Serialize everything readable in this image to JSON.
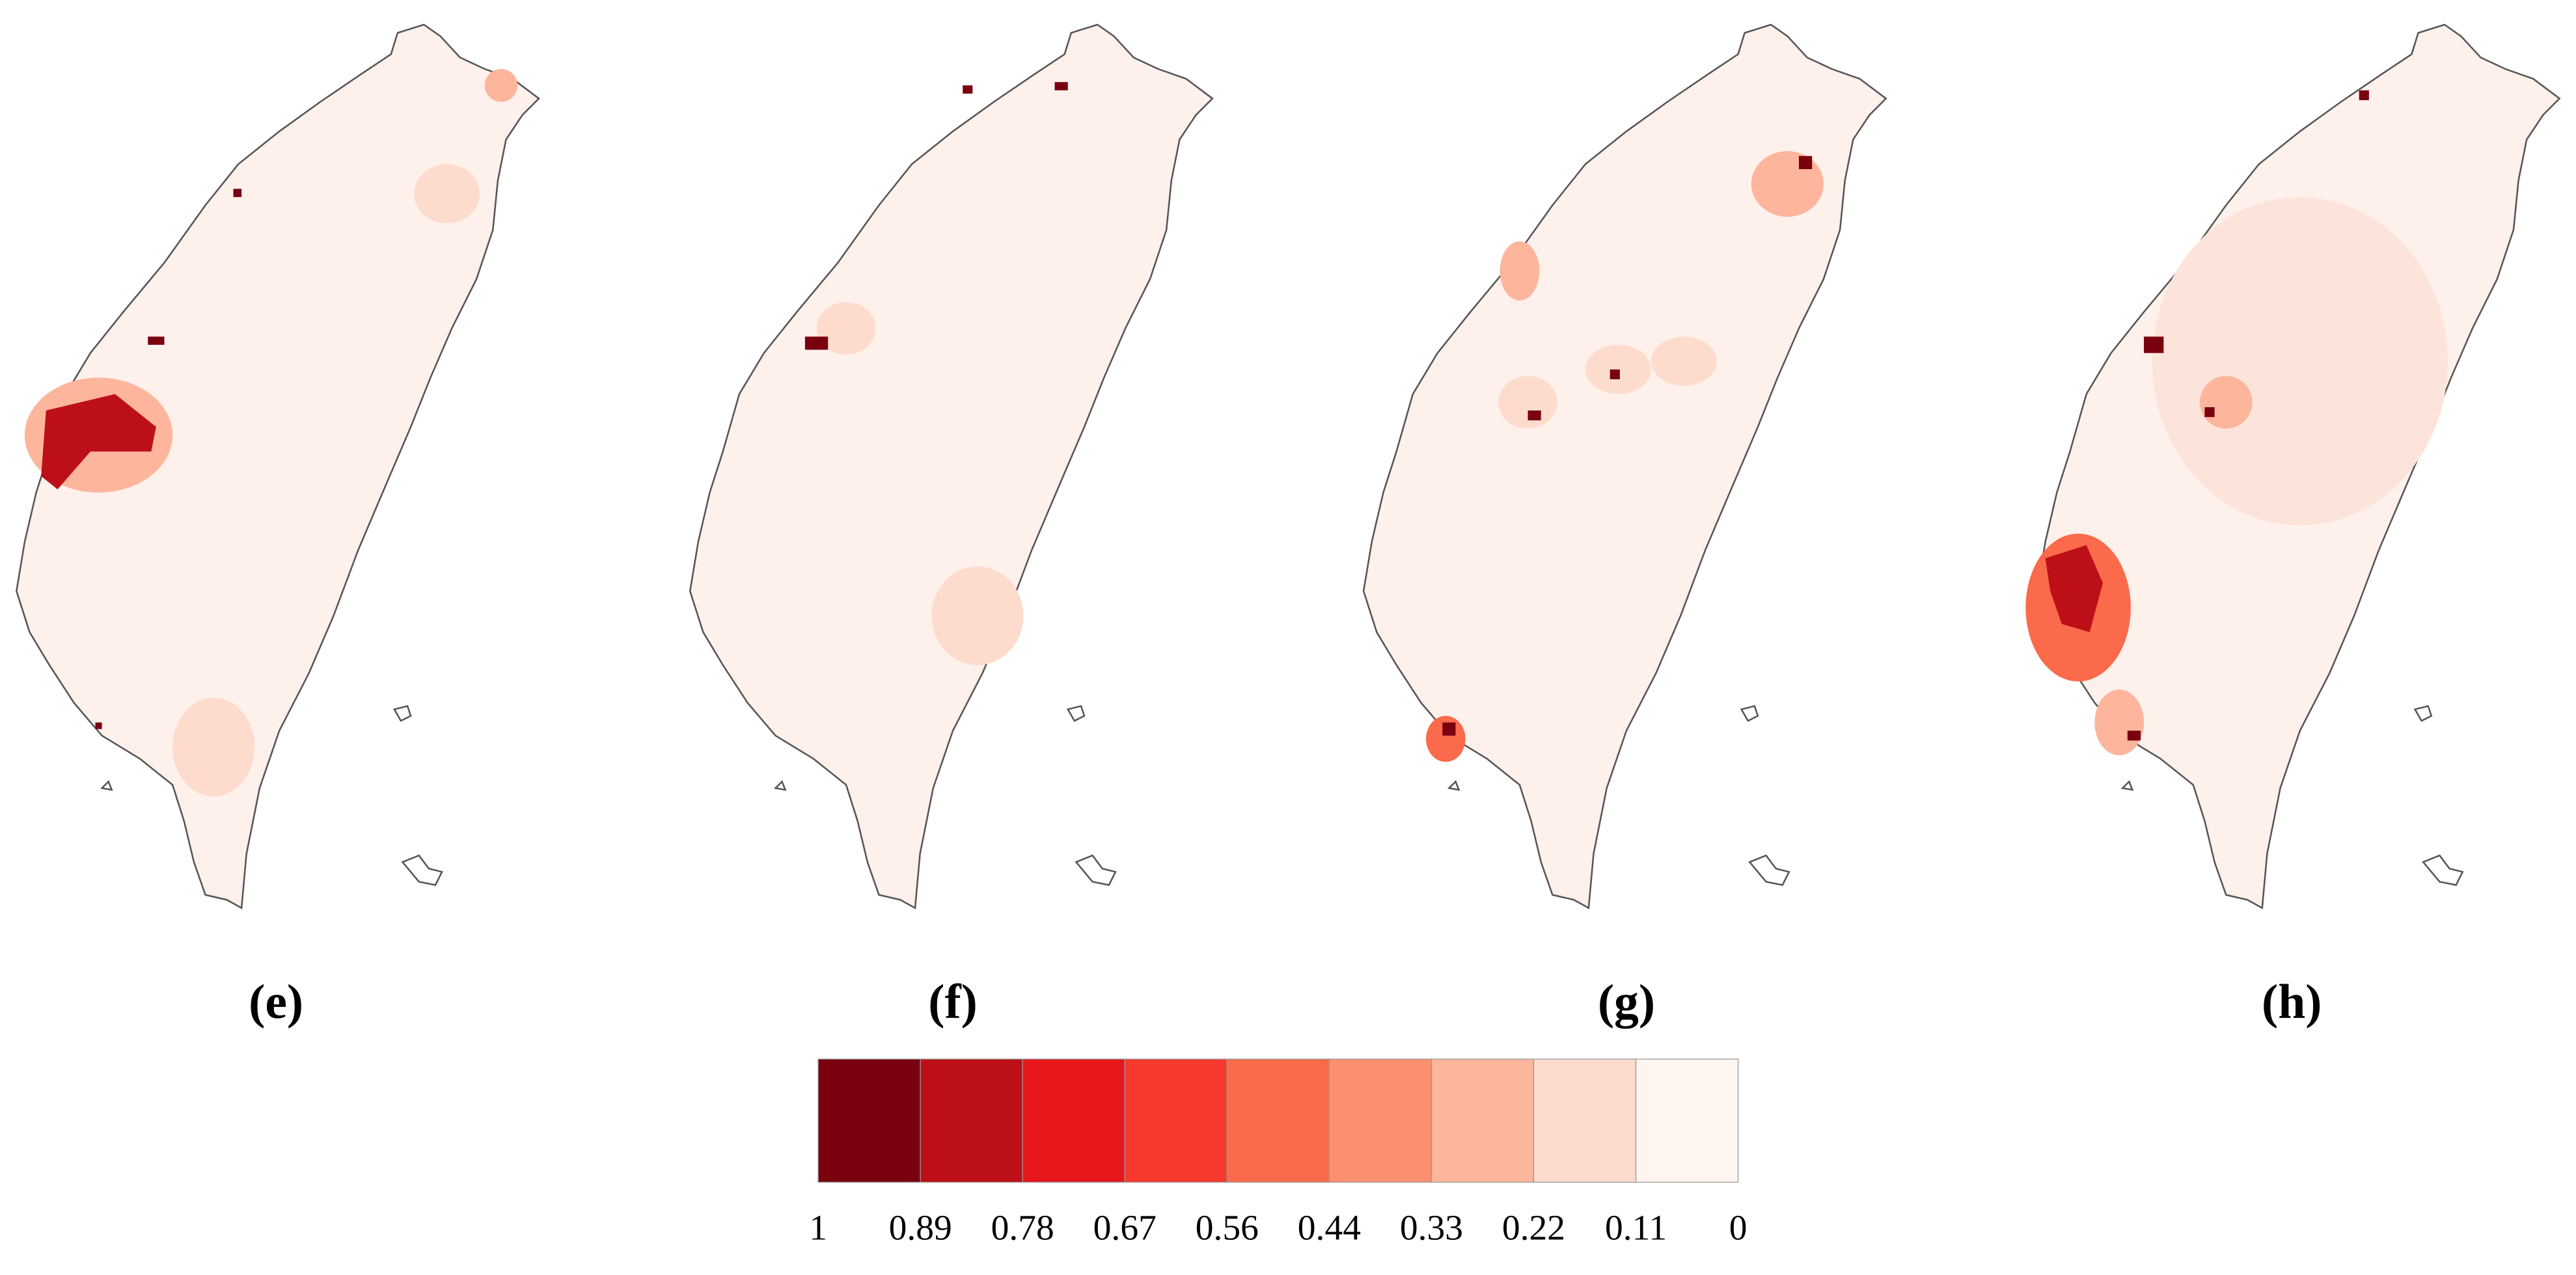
{
  "panels": [
    {
      "label": "(e)"
    },
    {
      "label": "(f)"
    },
    {
      "label": "(g)"
    },
    {
      "label": "(h)"
    }
  ],
  "legend": {
    "colors": [
      "#7a0010",
      "#bd0f18",
      "#e8171c",
      "#f7392d",
      "#fb6a4a",
      "#fc8f6f",
      "#fdb59c",
      "#fedccd",
      "#fff5f0"
    ],
    "ticks": [
      "1",
      "0.89",
      "0.78",
      "0.67",
      "0.56",
      "0.44",
      "0.33",
      "0.22",
      "0.11",
      "0"
    ]
  }
}
